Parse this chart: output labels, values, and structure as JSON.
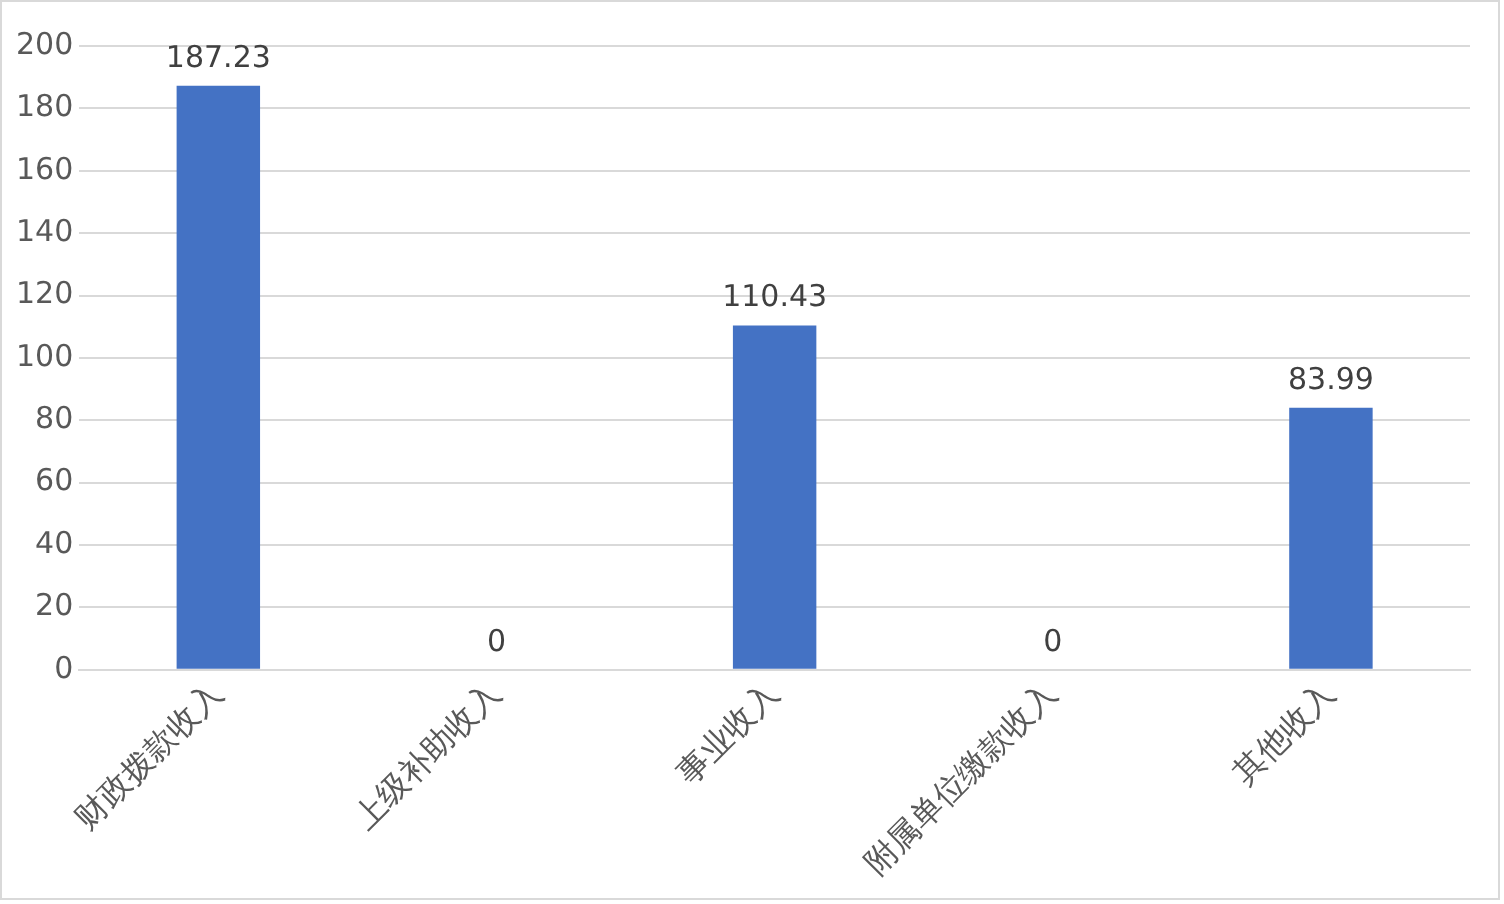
{
  "chart_data": {
    "type": "bar",
    "categories": [
      "财政拨款收入",
      "上级补助收入",
      "事业收入",
      "附属单位缴款收入",
      "其他收入"
    ],
    "values": [
      187.23,
      0,
      110.43,
      0,
      83.99
    ],
    "color": "#4472c4",
    "ylim": [
      0,
      200
    ],
    "yticks": [
      0,
      20,
      40,
      60,
      80,
      100,
      120,
      140,
      160,
      180,
      200
    ],
    "grid": "y",
    "data_labels": true,
    "legend": false
  }
}
